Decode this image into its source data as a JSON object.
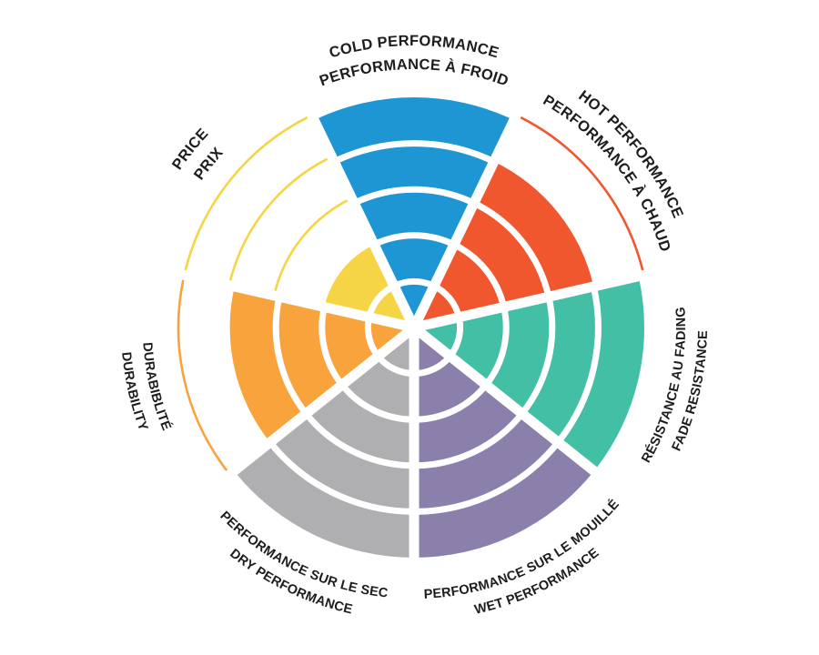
{
  "chart_data": {
    "type": "pie",
    "variant": "polar-rating-wheel-coxcomb",
    "description_visible_text_only": true,
    "max_rating": 5,
    "rings_per_sector": 5,
    "ring_values": [
      1,
      2,
      3,
      4,
      5
    ],
    "order": "clockwise-from-top",
    "background": "#FFFFFF",
    "label_color": "#1E1C1D",
    "separator_color": "#FFFFFF",
    "unfilled_rings_style": "thin outline arc in sector color",
    "categories": [
      {
        "id": "cold-performance",
        "label_line1": "COLD PERFORMANCE",
        "label_line2": "PERFORMANCE À FROID",
        "value": 5,
        "color": "#1F96D4"
      },
      {
        "id": "hot-performance",
        "label_line1": "HOT PERFORMANCE",
        "label_line2": "PERFORMANCE À CHAUD",
        "value": 4,
        "color": "#F1572E"
      },
      {
        "id": "fade-resistance",
        "label_line1": "RÉSISTANCE AU FADING",
        "label_line2": "FADE RESISTANCE",
        "value": 5,
        "color": "#43BFA6"
      },
      {
        "id": "wet-performance",
        "label_line1": "PERFORMANCE SUR LE MOUILLÉ",
        "label_line2": "WET PERFORMANCE",
        "value": 5,
        "color": "#8B80AC"
      },
      {
        "id": "dry-performance",
        "label_line1": "PERFORMANCE SUR LE SEC",
        "label_line2": "DRY PERFORMANCE",
        "value": 5,
        "color": "#AFAFB2"
      },
      {
        "id": "durability",
        "label_line1": "DURABIBLITÉ",
        "label_line2": "DURABILITY",
        "value": 4,
        "color": "#F9A33C"
      },
      {
        "id": "price",
        "label_line1": "PRICE",
        "label_line2": "PRIX",
        "value": 2,
        "color": "#F5D546"
      }
    ]
  }
}
